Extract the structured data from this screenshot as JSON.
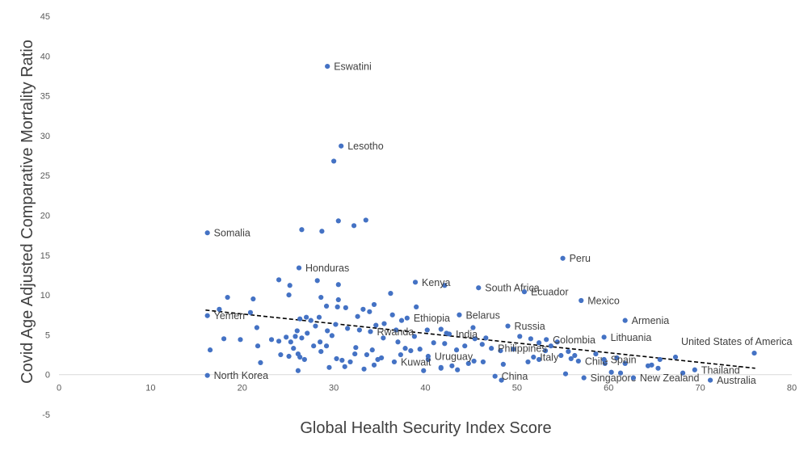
{
  "chart_data": {
    "type": "scatter",
    "title": "",
    "xlabel": "Global Health Security Index Score",
    "ylabel": "Covid Age Adjusted Comparative Mortality Ratio",
    "xlim": [
      0,
      80
    ],
    "ylim": [
      -5,
      45
    ],
    "x_ticks": [
      0,
      10,
      20,
      30,
      40,
      50,
      60,
      70,
      80
    ],
    "y_ticks": [
      -5,
      0,
      5,
      10,
      15,
      20,
      25,
      30,
      35,
      40,
      45
    ],
    "x_tick_labels": [
      "0",
      "10",
      "20",
      "30",
      "40",
      "50",
      "60",
      "70",
      "80"
    ],
    "y_tick_labels": [
      "-5",
      "0",
      "5",
      "10",
      "15",
      "20",
      "25",
      "30",
      "35",
      "40",
      "45"
    ],
    "grid": false,
    "point_color": "#4472c4",
    "trendline": {
      "style": "dashed",
      "color": "#000000",
      "from": [
        16,
        8.1
      ],
      "to": [
        76,
        0.8
      ]
    },
    "labeled_points": [
      {
        "label": "Eswatini",
        "x": 29.3,
        "y": 38.7,
        "pos": "right"
      },
      {
        "label": "Lesotho",
        "x": 30.8,
        "y": 28.7,
        "pos": "right"
      },
      {
        "label": "Somalia",
        "x": 16.2,
        "y": 17.8,
        "pos": "right"
      },
      {
        "label": "Honduras",
        "x": 26.2,
        "y": 13.4,
        "pos": "right"
      },
      {
        "label": "Peru",
        "x": 55.0,
        "y": 14.6,
        "pos": "right"
      },
      {
        "label": "Kenya",
        "x": 38.9,
        "y": 11.6,
        "pos": "right"
      },
      {
        "label": "South Africa",
        "x": 45.8,
        "y": 10.9,
        "pos": "right"
      },
      {
        "label": "Ecuador",
        "x": 50.8,
        "y": 10.4,
        "pos": "right"
      },
      {
        "label": "Mexico",
        "x": 57.0,
        "y": 9.3,
        "pos": "right"
      },
      {
        "label": "Armenia",
        "x": 61.8,
        "y": 6.8,
        "pos": "right"
      },
      {
        "label": "Yemen",
        "x": 16.2,
        "y": 7.4,
        "pos": "right"
      },
      {
        "label": "Ethiopia",
        "x": 38.0,
        "y": 7.1,
        "pos": "right"
      },
      {
        "label": "Belarus",
        "x": 43.7,
        "y": 7.5,
        "pos": "right"
      },
      {
        "label": "Rwanda",
        "x": 34.0,
        "y": 5.4,
        "pos": "right"
      },
      {
        "label": "India",
        "x": 42.6,
        "y": 5.1,
        "pos": "right"
      },
      {
        "label": "Russia",
        "x": 49.0,
        "y": 6.1,
        "pos": "right"
      },
      {
        "label": "Lithuania",
        "x": 59.5,
        "y": 4.7,
        "pos": "right"
      },
      {
        "label": "United States of America",
        "x": 75.9,
        "y": 2.7,
        "pos": "above-left"
      },
      {
        "label": "Colombia",
        "x": 53.2,
        "y": 4.4,
        "pos": "right"
      },
      {
        "label": "Philippines",
        "x": 47.2,
        "y": 3.3,
        "pos": "right"
      },
      {
        "label": "Italy",
        "x": 51.8,
        "y": 2.2,
        "pos": "right"
      },
      {
        "label": "Chile",
        "x": 56.7,
        "y": 1.7,
        "pos": "right"
      },
      {
        "label": "Spain",
        "x": 59.5,
        "y": 1.9,
        "pos": "right"
      },
      {
        "label": "Uruguay",
        "x": 40.3,
        "y": 2.3,
        "pos": "right"
      },
      {
        "label": "Kuwait",
        "x": 36.6,
        "y": 1.6,
        "pos": "right"
      },
      {
        "label": "North Korea",
        "x": 16.2,
        "y": -0.1,
        "pos": "right"
      },
      {
        "label": "China",
        "x": 47.6,
        "y": -0.2,
        "pos": "right"
      },
      {
        "label": "Singapore",
        "x": 57.3,
        "y": -0.4,
        "pos": "right"
      },
      {
        "label": "New Zealand",
        "x": 62.7,
        "y": -0.4,
        "pos": "right"
      },
      {
        "label": "Thailand",
        "x": 69.4,
        "y": 0.6,
        "pos": "right"
      },
      {
        "label": "Australia",
        "x": 71.1,
        "y": -0.7,
        "pos": "right"
      }
    ],
    "points": [
      [
        30.0,
        26.8
      ],
      [
        26.5,
        18.2
      ],
      [
        28.7,
        18.0
      ],
      [
        30.5,
        19.3
      ],
      [
        33.5,
        19.4
      ],
      [
        32.2,
        18.7
      ],
      [
        24.0,
        11.9
      ],
      [
        25.2,
        11.2
      ],
      [
        28.2,
        11.8
      ],
      [
        30.5,
        11.3
      ],
      [
        42.1,
        11.2
      ],
      [
        36.2,
        10.2
      ],
      [
        25.1,
        10.0
      ],
      [
        18.4,
        9.7
      ],
      [
        21.2,
        9.5
      ],
      [
        28.6,
        9.7
      ],
      [
        30.5,
        9.4
      ],
      [
        34.4,
        8.8
      ],
      [
        17.5,
        8.2
      ],
      [
        20.9,
        7.8
      ],
      [
        26.3,
        7.0
      ],
      [
        27.0,
        7.2
      ],
      [
        28.4,
        7.2
      ],
      [
        29.2,
        8.6
      ],
      [
        30.4,
        8.5
      ],
      [
        31.3,
        8.4
      ],
      [
        32.6,
        7.3
      ],
      [
        33.2,
        8.2
      ],
      [
        33.9,
        7.9
      ],
      [
        35.5,
        6.4
      ],
      [
        36.4,
        7.5
      ],
      [
        37.4,
        6.8
      ],
      [
        39.0,
        8.5
      ],
      [
        41.7,
        5.7
      ],
      [
        45.2,
        5.9
      ],
      [
        46.2,
        3.8
      ],
      [
        19.8,
        4.4
      ],
      [
        21.6,
        5.9
      ],
      [
        18.0,
        4.5
      ],
      [
        16.5,
        3.1
      ],
      [
        23.2,
        4.4
      ],
      [
        24.0,
        4.2
      ],
      [
        24.8,
        4.7
      ],
      [
        25.3,
        4.1
      ],
      [
        26.0,
        5.5
      ],
      [
        26.5,
        4.6
      ],
      [
        27.5,
        6.8
      ],
      [
        28.0,
        6.1
      ],
      [
        28.5,
        4.1
      ],
      [
        29.3,
        5.5
      ],
      [
        29.8,
        4.9
      ],
      [
        30.2,
        6.3
      ],
      [
        31.5,
        5.8
      ],
      [
        32.4,
        3.4
      ],
      [
        32.8,
        5.6
      ],
      [
        34.6,
        6.2
      ],
      [
        35.4,
        4.6
      ],
      [
        36.8,
        5.6
      ],
      [
        37.8,
        3.3
      ],
      [
        38.8,
        4.8
      ],
      [
        39.4,
        3.2
      ],
      [
        40.2,
        5.6
      ],
      [
        40.9,
        4.0
      ],
      [
        42.1,
        3.9
      ],
      [
        43.4,
        3.1
      ],
      [
        44.3,
        3.6
      ],
      [
        45.4,
        4.5
      ],
      [
        46.6,
        4.6
      ],
      [
        48.2,
        3.0
      ],
      [
        50.3,
        4.8
      ],
      [
        51.5,
        4.5
      ],
      [
        52.4,
        4.0
      ],
      [
        53.7,
        3.6
      ],
      [
        54.4,
        4.1
      ],
      [
        55.6,
        2.9
      ],
      [
        56.3,
        2.4
      ],
      [
        21.7,
        3.6
      ],
      [
        22.0,
        1.5
      ],
      [
        24.2,
        2.5
      ],
      [
        25.1,
        2.3
      ],
      [
        25.6,
        3.3
      ],
      [
        26.1,
        2.6
      ],
      [
        26.3,
        2.2
      ],
      [
        26.8,
        1.9
      ],
      [
        27.8,
        3.6
      ],
      [
        28.6,
        2.9
      ],
      [
        29.2,
        3.6
      ],
      [
        30.3,
        2.0
      ],
      [
        30.9,
        1.8
      ],
      [
        31.8,
        1.6
      ],
      [
        32.3,
        2.6
      ],
      [
        33.6,
        2.5
      ],
      [
        34.2,
        3.1
      ],
      [
        34.8,
        1.9
      ],
      [
        35.2,
        2.1
      ],
      [
        37.3,
        2.5
      ],
      [
        38.4,
        3.0
      ],
      [
        40.3,
        1.9
      ],
      [
        41.7,
        0.8
      ],
      [
        42.9,
        1.1
      ],
      [
        44.7,
        1.4
      ],
      [
        46.3,
        1.6
      ],
      [
        48.5,
        1.3
      ],
      [
        49.6,
        3.2
      ],
      [
        51.2,
        1.6
      ],
      [
        52.4,
        1.9
      ],
      [
        53.1,
        3.0
      ],
      [
        54.8,
        2.4
      ],
      [
        55.9,
        2.0
      ],
      [
        58.6,
        2.6
      ],
      [
        59.6,
        1.4
      ],
      [
        60.9,
        2.1
      ],
      [
        61.8,
        1.4
      ],
      [
        64.3,
        1.1
      ],
      [
        65.6,
        1.9
      ],
      [
        67.3,
        2.2
      ],
      [
        26.1,
        0.5
      ],
      [
        29.5,
        0.9
      ],
      [
        31.2,
        1.0
      ],
      [
        33.3,
        0.7
      ],
      [
        34.4,
        1.2
      ],
      [
        39.8,
        0.5
      ],
      [
        41.7,
        0.9
      ],
      [
        43.5,
        0.6
      ],
      [
        45.3,
        1.7
      ],
      [
        48.3,
        -0.7
      ],
      [
        55.3,
        0.1
      ],
      [
        60.3,
        0.3
      ],
      [
        64.7,
        1.2
      ],
      [
        65.4,
        0.8
      ],
      [
        68.1,
        0.2
      ],
      [
        61.3,
        0.2
      ],
      [
        42.3,
        5.2
      ],
      [
        37.0,
        4.1
      ],
      [
        27.1,
        5.2
      ],
      [
        25.8,
        4.8
      ]
    ]
  }
}
